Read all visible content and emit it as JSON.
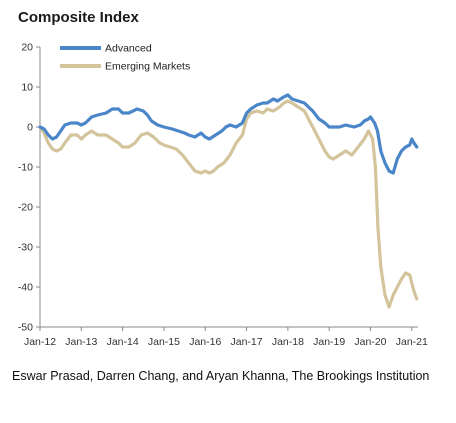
{
  "chart_data": {
    "type": "line",
    "title": "Composite Index",
    "xlabel": "",
    "ylabel": "",
    "ylim": [
      -50,
      20
    ],
    "yticks": [
      20,
      10,
      0,
      -10,
      -20,
      -30,
      -40,
      -50
    ],
    "xlim": [
      2012.0,
      2021.15
    ],
    "xticks": [
      {
        "label": "Jan-12",
        "x": 2012.0
      },
      {
        "label": "Jan-13",
        "x": 2013.0
      },
      {
        "label": "Jan-14",
        "x": 2014.0
      },
      {
        "label": "Jan-15",
        "x": 2015.0
      },
      {
        "label": "Jan-16",
        "x": 2016.0
      },
      {
        "label": "Jan-17",
        "x": 2017.0
      },
      {
        "label": "Jan-18",
        "x": 2018.0
      },
      {
        "label": "Jan-19",
        "x": 2019.0
      },
      {
        "label": "Jan-20",
        "x": 2020.0
      },
      {
        "label": "Jan-21",
        "x": 2021.0
      }
    ],
    "grid": false,
    "legend": "top-left",
    "series": [
      {
        "name": "Advanced",
        "color": "#4a86c8",
        "points": [
          [
            2012.0,
            0
          ],
          [
            2012.1,
            -0.5
          ],
          [
            2012.2,
            -2
          ],
          [
            2012.3,
            -3
          ],
          [
            2012.4,
            -2.5
          ],
          [
            2012.5,
            -1
          ],
          [
            2012.6,
            0.5
          ],
          [
            2012.75,
            1
          ],
          [
            2012.9,
            1
          ],
          [
            2013.0,
            0.5
          ],
          [
            2013.1,
            1
          ],
          [
            2013.25,
            2.5
          ],
          [
            2013.4,
            3
          ],
          [
            2013.6,
            3.5
          ],
          [
            2013.75,
            4.5
          ],
          [
            2013.9,
            4.5
          ],
          [
            2014.0,
            3.5
          ],
          [
            2014.15,
            3.5
          ],
          [
            2014.35,
            4.5
          ],
          [
            2014.5,
            4
          ],
          [
            2014.6,
            3
          ],
          [
            2014.7,
            1.5
          ],
          [
            2014.85,
            0.5
          ],
          [
            2015.0,
            0
          ],
          [
            2015.2,
            -0.5
          ],
          [
            2015.35,
            -1
          ],
          [
            2015.5,
            -1.5
          ],
          [
            2015.6,
            -2
          ],
          [
            2015.75,
            -2.5
          ],
          [
            2015.9,
            -1.5
          ],
          [
            2016.0,
            -2.5
          ],
          [
            2016.1,
            -3
          ],
          [
            2016.25,
            -2
          ],
          [
            2016.4,
            -1
          ],
          [
            2016.5,
            0
          ],
          [
            2016.6,
            0.5
          ],
          [
            2016.75,
            0
          ],
          [
            2016.9,
            1
          ],
          [
            2017.0,
            3.5
          ],
          [
            2017.1,
            4.5
          ],
          [
            2017.25,
            5.5
          ],
          [
            2017.4,
            6
          ],
          [
            2017.5,
            6
          ],
          [
            2017.65,
            7
          ],
          [
            2017.75,
            6.5
          ],
          [
            2017.9,
            7.5
          ],
          [
            2018.0,
            8
          ],
          [
            2018.1,
            7
          ],
          [
            2018.25,
            6.5
          ],
          [
            2018.4,
            6
          ],
          [
            2018.5,
            5
          ],
          [
            2018.6,
            4
          ],
          [
            2018.75,
            2
          ],
          [
            2018.9,
            1
          ],
          [
            2019.0,
            0
          ],
          [
            2019.1,
            0
          ],
          [
            2019.25,
            0
          ],
          [
            2019.4,
            0.5
          ],
          [
            2019.6,
            0
          ],
          [
            2019.75,
            0.5
          ],
          [
            2019.85,
            1.5
          ],
          [
            2019.95,
            2
          ],
          [
            2020.0,
            2.5
          ],
          [
            2020.1,
            1
          ],
          [
            2020.17,
            -1
          ],
          [
            2020.25,
            -6
          ],
          [
            2020.35,
            -9
          ],
          [
            2020.45,
            -11
          ],
          [
            2020.55,
            -11.5
          ],
          [
            2020.65,
            -8
          ],
          [
            2020.75,
            -6
          ],
          [
            2020.85,
            -5
          ],
          [
            2020.95,
            -4.5
          ],
          [
            2021.0,
            -3
          ],
          [
            2021.05,
            -4
          ],
          [
            2021.12,
            -5
          ]
        ]
      },
      {
        "name": "Emerging Markets",
        "color": "#d4c49c",
        "points": [
          [
            2012.0,
            0
          ],
          [
            2012.1,
            -1.5
          ],
          [
            2012.2,
            -4
          ],
          [
            2012.3,
            -5.5
          ],
          [
            2012.4,
            -6
          ],
          [
            2012.5,
            -5.5
          ],
          [
            2012.6,
            -4
          ],
          [
            2012.75,
            -2
          ],
          [
            2012.9,
            -2
          ],
          [
            2013.0,
            -3
          ],
          [
            2013.1,
            -2
          ],
          [
            2013.25,
            -1
          ],
          [
            2013.4,
            -2
          ],
          [
            2013.6,
            -2
          ],
          [
            2013.75,
            -3
          ],
          [
            2013.9,
            -4
          ],
          [
            2014.0,
            -5
          ],
          [
            2014.15,
            -5
          ],
          [
            2014.3,
            -4
          ],
          [
            2014.45,
            -2
          ],
          [
            2014.6,
            -1.5
          ],
          [
            2014.75,
            -2.5
          ],
          [
            2014.9,
            -4
          ],
          [
            2015.0,
            -4.5
          ],
          [
            2015.15,
            -5
          ],
          [
            2015.3,
            -5.5
          ],
          [
            2015.45,
            -7
          ],
          [
            2015.6,
            -9
          ],
          [
            2015.75,
            -11
          ],
          [
            2015.9,
            -11.5
          ],
          [
            2016.0,
            -11
          ],
          [
            2016.1,
            -11.5
          ],
          [
            2016.2,
            -11
          ],
          [
            2016.3,
            -10
          ],
          [
            2016.45,
            -9
          ],
          [
            2016.6,
            -7
          ],
          [
            2016.75,
            -4
          ],
          [
            2016.9,
            -2
          ],
          [
            2017.0,
            2
          ],
          [
            2017.1,
            3.5
          ],
          [
            2017.25,
            4
          ],
          [
            2017.4,
            3.5
          ],
          [
            2017.5,
            4.5
          ],
          [
            2017.65,
            4
          ],
          [
            2017.8,
            5
          ],
          [
            2017.9,
            6
          ],
          [
            2018.0,
            6.5
          ],
          [
            2018.1,
            6
          ],
          [
            2018.25,
            5
          ],
          [
            2018.4,
            4
          ],
          [
            2018.5,
            2
          ],
          [
            2018.6,
            0
          ],
          [
            2018.75,
            -3
          ],
          [
            2018.9,
            -6
          ],
          [
            2019.0,
            -7.5
          ],
          [
            2019.1,
            -8
          ],
          [
            2019.25,
            -7
          ],
          [
            2019.4,
            -6
          ],
          [
            2019.55,
            -7
          ],
          [
            2019.7,
            -5
          ],
          [
            2019.85,
            -3
          ],
          [
            2019.95,
            -1
          ],
          [
            2020.05,
            -3
          ],
          [
            2020.12,
            -10
          ],
          [
            2020.18,
            -25
          ],
          [
            2020.25,
            -35
          ],
          [
            2020.35,
            -42
          ],
          [
            2020.45,
            -45
          ],
          [
            2020.55,
            -42
          ],
          [
            2020.65,
            -40
          ],
          [
            2020.75,
            -38
          ],
          [
            2020.85,
            -36.5
          ],
          [
            2020.95,
            -37
          ],
          [
            2021.0,
            -39
          ],
          [
            2021.05,
            -41
          ],
          [
            2021.12,
            -43
          ]
        ]
      }
    ]
  },
  "source_text": "Eswar Prasad, Darren Chang, and Aryan Khanna, The Brookings Institution"
}
